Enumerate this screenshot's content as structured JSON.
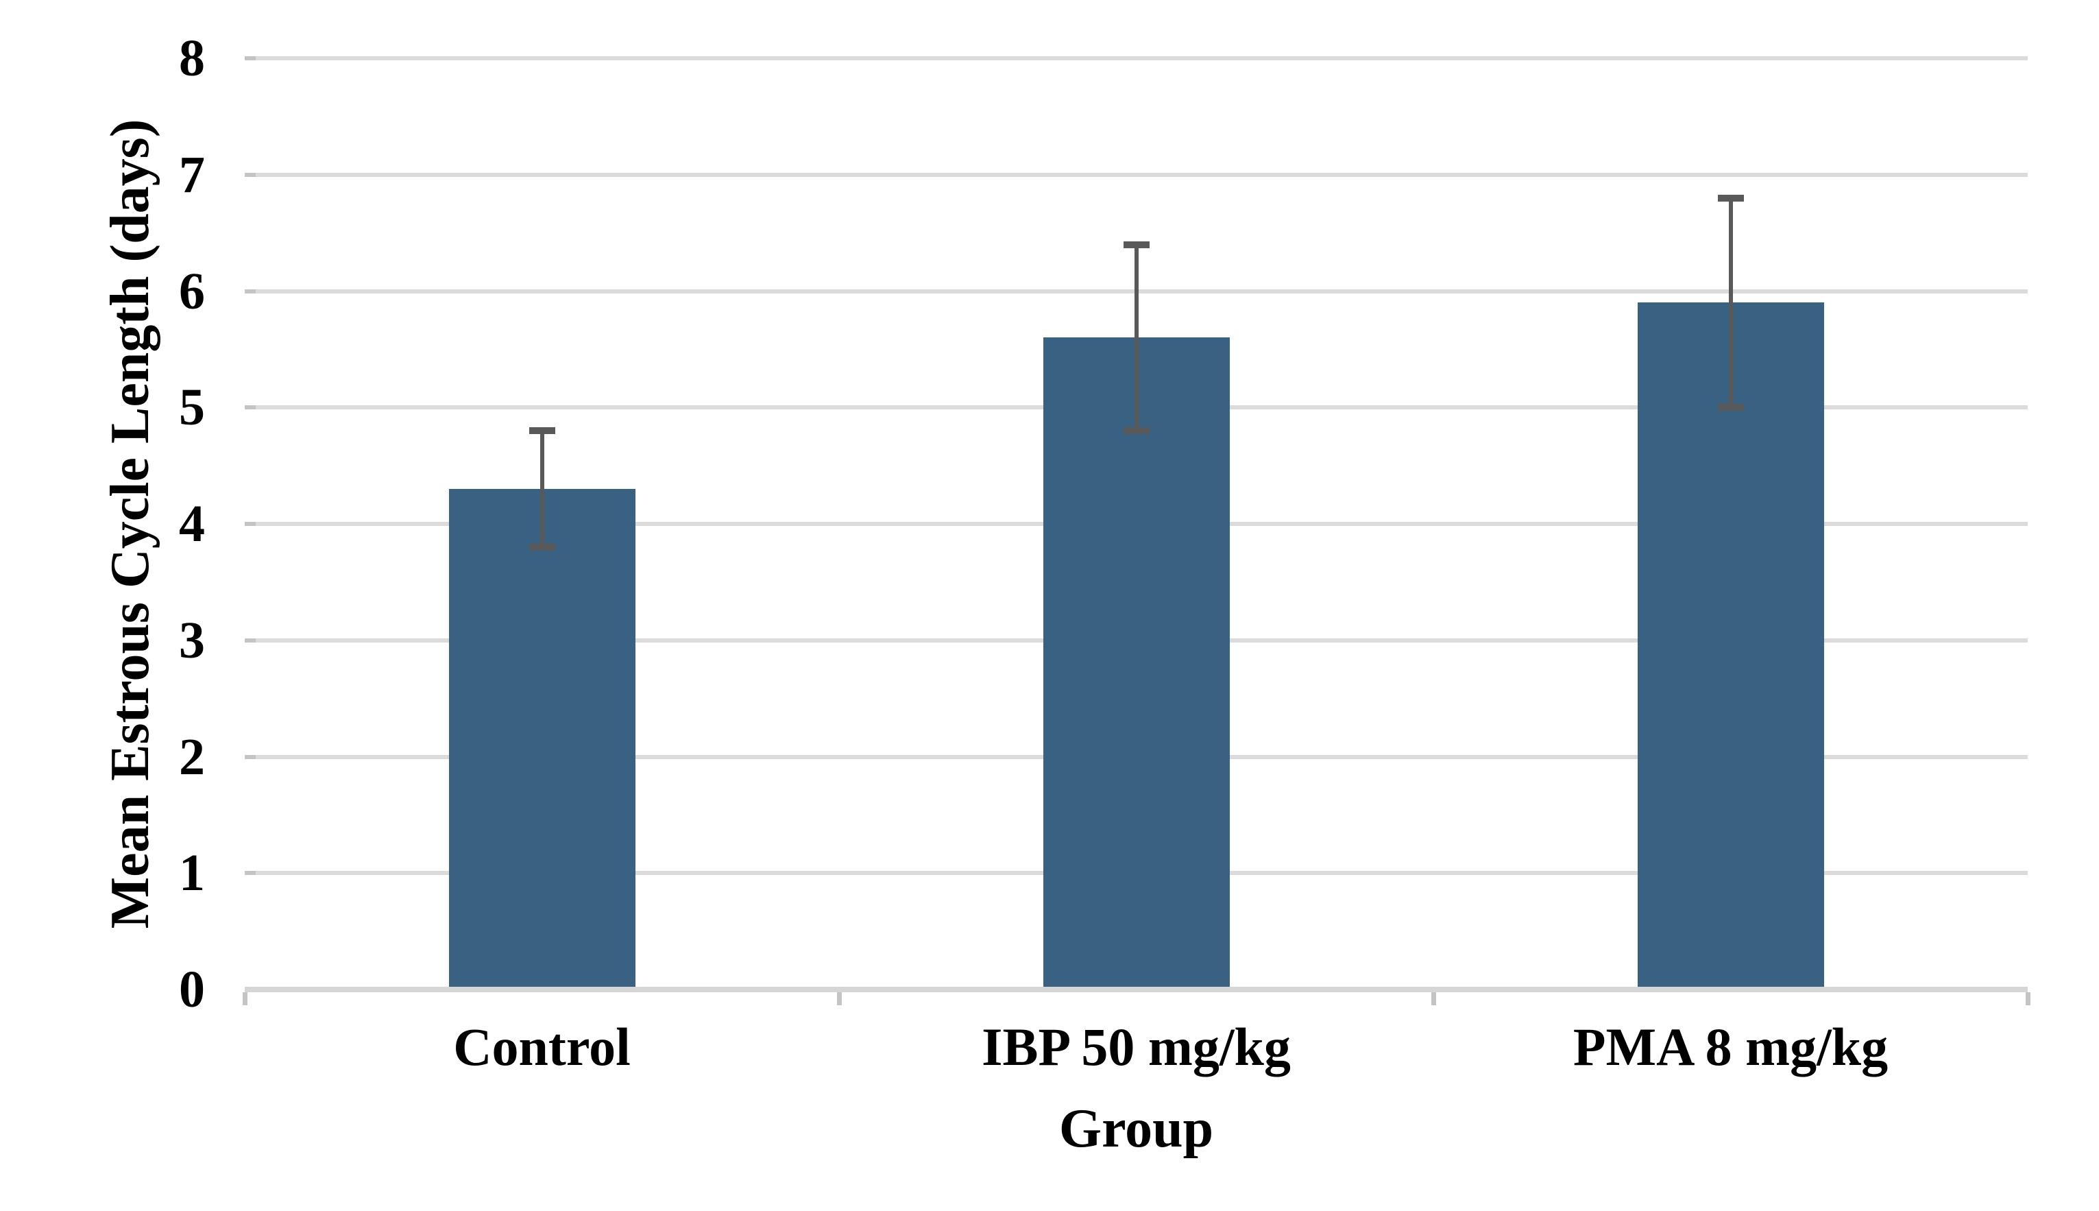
{
  "chart_data": {
    "type": "bar",
    "title": "",
    "categories": [
      "Control",
      "IBP 50 mg/kg",
      "PMA 8 mg/kg"
    ],
    "values": [
      4.3,
      5.6,
      5.9
    ],
    "error_bars": {
      "low": [
        3.8,
        4.8,
        5.0
      ],
      "high": [
        4.8,
        6.4,
        6.8
      ]
    },
    "xlabel": "Group",
    "ylabel": "Mean Estrous Cycle Length (days)",
    "ylim": [
      0,
      8
    ],
    "yticks": [
      0,
      1,
      2,
      3,
      4,
      5,
      6,
      7,
      8
    ],
    "grid": "horizontal-only",
    "legend": "none",
    "colors": {
      "bar_fill": "#396182",
      "error_bar": "#595959",
      "gridline": "#DBDBDB",
      "axis_line": "#D6D6D6",
      "tick_mark": "#C4C4C4",
      "text": "#000000",
      "background": "#FFFFFF"
    }
  }
}
